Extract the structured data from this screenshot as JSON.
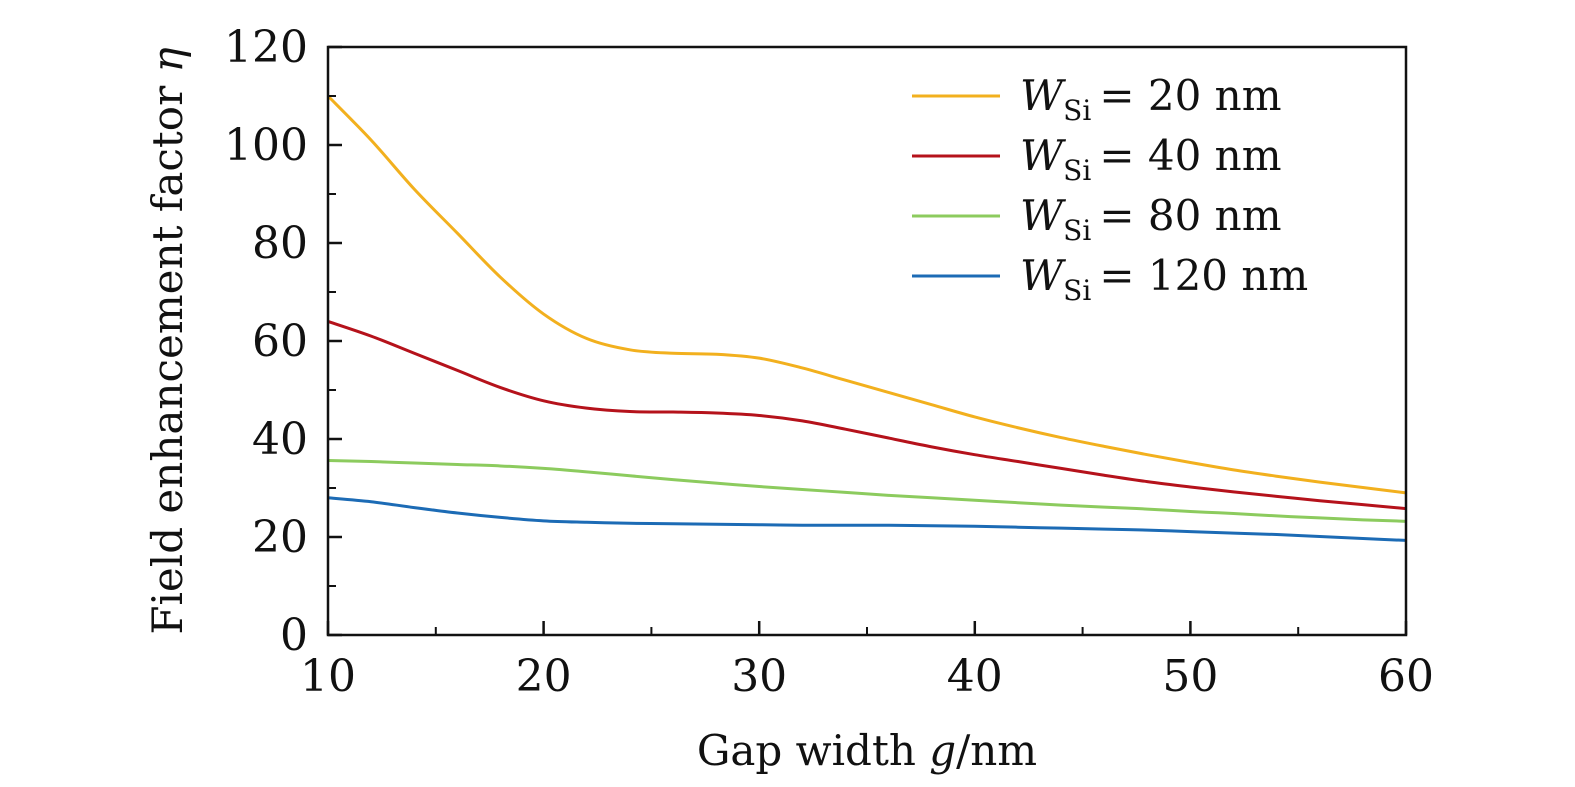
{
  "chart_data": {
    "type": "line",
    "xlabel": {
      "prefix": "Gap width ",
      "var": "g",
      "suffix": "/nm"
    },
    "ylabel": {
      "prefix": "Field enhancement factor ",
      "var": "η"
    },
    "xlim": [
      10,
      60
    ],
    "ylim": [
      0,
      120
    ],
    "xticks": [
      10,
      20,
      30,
      40,
      50,
      60
    ],
    "yticks": [
      0,
      20,
      40,
      60,
      80,
      100,
      120
    ],
    "x_minor_step": 5,
    "y_minor_step": 10,
    "grid": false,
    "legend_position": "top-right",
    "series": [
      {
        "name": "W_Si = 20 nm",
        "legend": {
          "var": "W",
          "sub": "Si",
          "rest": "=  20 nm"
        },
        "color": "#F2B01E",
        "x": [
          10,
          12,
          14,
          16,
          18,
          20,
          22,
          24,
          26,
          28,
          30,
          32,
          34,
          36,
          38,
          40,
          42,
          44,
          46,
          48,
          50,
          52,
          54,
          56,
          58,
          60
        ],
        "y": [
          110,
          101,
          91,
          82,
          73,
          65.5,
          60.5,
          58.2,
          57.5,
          57.3,
          56.5,
          54.5,
          52,
          49.5,
          47,
          44.5,
          42.3,
          40.3,
          38.5,
          36.8,
          35.2,
          33.7,
          32.4,
          31.2,
          30.1,
          29
        ]
      },
      {
        "name": "W_Si = 40 nm",
        "legend": {
          "var": "W",
          "sub": "Si",
          "rest": "=  40 nm"
        },
        "color": "#B5121B",
        "x": [
          10,
          12,
          14,
          16,
          18,
          20,
          22,
          24,
          26,
          28,
          30,
          32,
          34,
          36,
          38,
          40,
          42,
          44,
          46,
          48,
          50,
          52,
          54,
          56,
          58,
          60
        ],
        "y": [
          64,
          61,
          57.5,
          54,
          50.5,
          47.8,
          46.3,
          45.6,
          45.5,
          45.3,
          44.8,
          43.7,
          42,
          40.2,
          38.4,
          36.8,
          35.4,
          34,
          32.6,
          31.3,
          30.2,
          29.2,
          28.3,
          27.4,
          26.6,
          25.8
        ]
      },
      {
        "name": "W_Si = 80 nm",
        "legend": {
          "var": "W",
          "sub": "Si",
          "rest": "=  80 nm"
        },
        "color": "#8CCB5E",
        "x": [
          10,
          12,
          14,
          16,
          18,
          20,
          22,
          24,
          26,
          28,
          30,
          32,
          34,
          36,
          38,
          40,
          42,
          44,
          46,
          48,
          50,
          52,
          54,
          56,
          58,
          60
        ],
        "y": [
          35.6,
          35.4,
          35.1,
          34.8,
          34.5,
          34,
          33.3,
          32.5,
          31.7,
          31,
          30.3,
          29.7,
          29.1,
          28.5,
          28,
          27.5,
          27,
          26.5,
          26.1,
          25.7,
          25.2,
          24.8,
          24.3,
          23.9,
          23.5,
          23.2
        ]
      },
      {
        "name": "W_Si = 120 nm",
        "legend": {
          "var": "W",
          "sub": "Si",
          "rest": "=  120 nm"
        },
        "color": "#1C6BB5",
        "x": [
          10,
          12,
          14,
          16,
          18,
          20,
          22,
          24,
          26,
          28,
          30,
          32,
          34,
          36,
          38,
          40,
          42,
          44,
          46,
          48,
          50,
          52,
          54,
          56,
          58,
          60
        ],
        "y": [
          28,
          27.2,
          26,
          24.9,
          24,
          23.3,
          23,
          22.8,
          22.7,
          22.6,
          22.5,
          22.4,
          22.4,
          22.4,
          22.3,
          22.2,
          22,
          21.8,
          21.6,
          21.4,
          21.1,
          20.8,
          20.5,
          20.1,
          19.7,
          19.3
        ]
      }
    ]
  }
}
